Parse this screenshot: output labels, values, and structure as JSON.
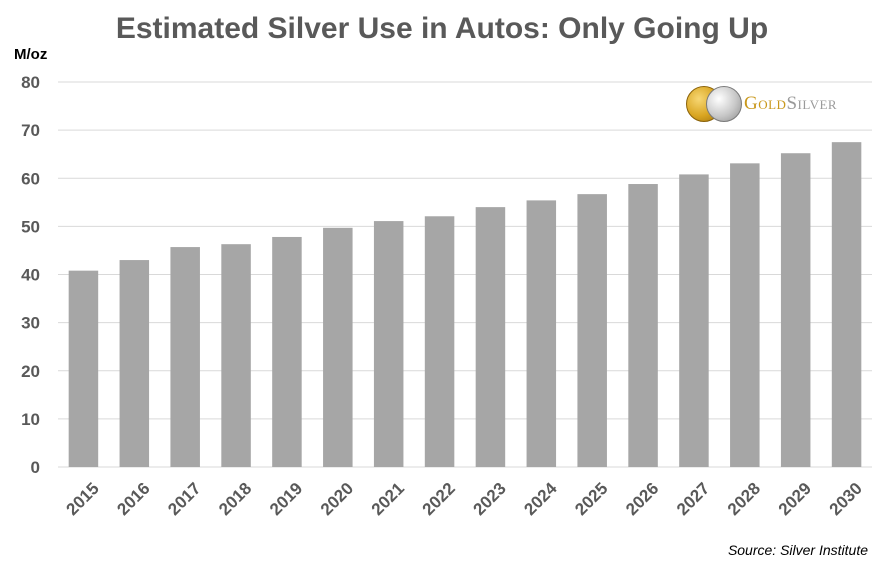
{
  "title": "Estimated Silver Use in Autos: Only Going Up",
  "source": "Source: Silver Institute",
  "logo": {
    "text_gold": "Gold",
    "text_silver": "Silver",
    "gold_color": "#c9981c",
    "silver_color": "#9a9a9a"
  },
  "colors": {
    "bar": "#a6a6a6",
    "gridline": "#d9d9d9",
    "axis_text": "#595959",
    "title": "#595959"
  },
  "chart_data": {
    "type": "bar",
    "title": "Estimated Silver Use in Autos: Only Going Up",
    "ylabel": "M/oz",
    "xlabel": "",
    "categories": [
      "2015",
      "2016",
      "2017",
      "2018",
      "2019",
      "2020",
      "2021",
      "2022",
      "2023",
      "2024",
      "2025",
      "2026",
      "2027",
      "2028",
      "2029",
      "2030"
    ],
    "values": [
      40.8,
      43.0,
      45.7,
      46.3,
      47.8,
      49.7,
      51.1,
      52.1,
      54.0,
      55.4,
      56.7,
      58.8,
      60.8,
      63.1,
      65.2,
      67.5
    ],
    "ylim": [
      0,
      80
    ],
    "yticks": [
      0,
      10,
      20,
      30,
      40,
      50,
      60,
      70,
      80
    ],
    "grid": true,
    "legend": "none"
  }
}
